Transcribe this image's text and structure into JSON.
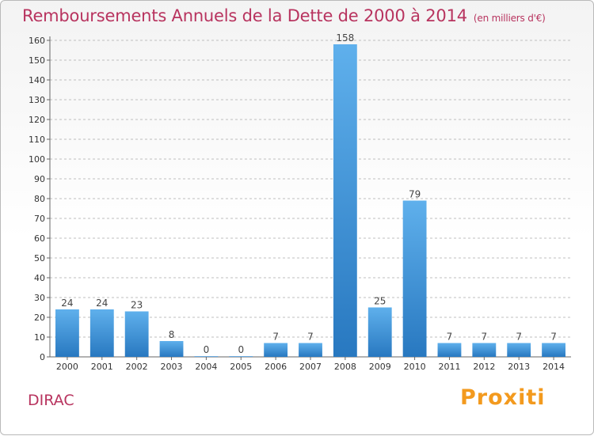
{
  "title": "Remboursements Annuels de la Dette de 2000 à 2014",
  "subtitle": "(en milliers d'€)",
  "place": "DIRAC",
  "logo": "Proxiti",
  "colors": {
    "title": "#b8345f",
    "bar_top": "#5fb0ec",
    "bar_bottom": "#2878c0",
    "grid": "#bfbfbf"
  },
  "chart_data": {
    "type": "bar",
    "title": "Remboursements Annuels de la Dette de 2000 à 2014",
    "subtitle": "(en milliers d'€)",
    "categories": [
      "2000",
      "2001",
      "2002",
      "2003",
      "2004",
      "2005",
      "2006",
      "2007",
      "2008",
      "2009",
      "2010",
      "2011",
      "2012",
      "2013",
      "2014"
    ],
    "values": [
      24,
      24,
      23,
      8,
      0,
      0,
      7,
      7,
      158,
      25,
      79,
      7,
      7,
      7,
      7
    ],
    "data_labels": [
      "24",
      "24",
      "23",
      "8",
      "0",
      "0",
      "7",
      "7",
      "158",
      "25",
      "79",
      "7",
      "7",
      "7",
      "7"
    ],
    "ylim": [
      0,
      160
    ],
    "yticks": [
      0,
      10,
      20,
      30,
      40,
      50,
      60,
      70,
      80,
      90,
      100,
      110,
      120,
      130,
      140,
      150,
      160
    ],
    "grid": "horizontal dashed",
    "legend": "none"
  }
}
